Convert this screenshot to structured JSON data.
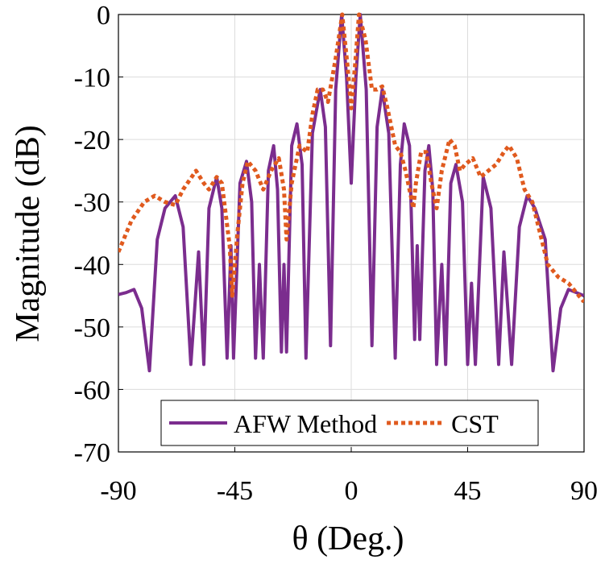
{
  "chart_data": {
    "type": "line",
    "xlabel": "θ (Deg.)",
    "ylabel": "Magnitude (dB)",
    "xlim": [
      -90,
      90
    ],
    "xticks": [
      -90,
      -45,
      0,
      45,
      90
    ],
    "ylim": [
      -70,
      0
    ],
    "yticks": [
      -70,
      -60,
      -50,
      -40,
      -30,
      -20,
      -10,
      0
    ],
    "grid": true,
    "legend": "lower center",
    "series": [
      {
        "name": "AFW Method",
        "color": "#7b2d8e",
        "dash": "solid",
        "x": [
          -90,
          -87,
          -84,
          -81,
          -78,
          -75,
          -72,
          -68,
          -65,
          -62,
          -59,
          -57,
          -55,
          -52,
          -50,
          -48,
          -46.5,
          -45.5,
          -43,
          -40.5,
          -38.5,
          -37,
          -35.5,
          -34,
          -32,
          -30,
          -28.5,
          -27,
          -26,
          -25,
          -23,
          -21,
          -19,
          -17.5,
          -15,
          -12,
          -10,
          -8,
          -6,
          -3.7,
          -1.8,
          0,
          1.8,
          3.5,
          5.8,
          8,
          10,
          12,
          14.5,
          17,
          19,
          20.5,
          22.5,
          24.5,
          25.5,
          26.5,
          28.5,
          30,
          31.5,
          33,
          35,
          36.5,
          38.5,
          40.5,
          43,
          45,
          46.5,
          48,
          51,
          54,
          57,
          59,
          62,
          65,
          68,
          71,
          75,
          78,
          81,
          84,
          87,
          90
        ],
        "values": [
          -44.8,
          -44.5,
          -44,
          -47,
          -57,
          -36,
          -31,
          -29,
          -34,
          -56,
          -38,
          -56,
          -31,
          -26,
          -31,
          -55,
          -37,
          -55,
          -27,
          -23.5,
          -30,
          -55,
          -40,
          -55,
          -25,
          -21,
          -28,
          -54,
          -40,
          -54,
          -21,
          -17.5,
          -24,
          -55,
          -19,
          -12,
          -18,
          -53,
          -12,
          0,
          -10,
          -27,
          -10,
          0,
          -12,
          -53,
          -18,
          -12,
          -19,
          -55,
          -24,
          -17.5,
          -21,
          -52,
          -37,
          -52,
          -25,
          -21,
          -28,
          -56,
          -40,
          -56,
          -27,
          -24,
          -30,
          -56,
          -43,
          -56,
          -26,
          -31,
          -56,
          -38,
          -56,
          -34,
          -29,
          -31,
          -36,
          -57,
          -47,
          -44,
          -44.5,
          -45
        ]
      },
      {
        "name": "CST",
        "color": "#e05a1e",
        "dash": "dotted",
        "x": [
          -90,
          -85,
          -80,
          -76,
          -72,
          -68,
          -65,
          -60,
          -57,
          -55,
          -52,
          -50,
          -47,
          -46,
          -44,
          -42,
          -40,
          -37,
          -34,
          -31,
          -28,
          -26,
          -25,
          -23,
          -20,
          -17,
          -15,
          -13,
          -11,
          -9,
          -6,
          -3.5,
          -1.5,
          0,
          1.5,
          3,
          5.5,
          8,
          10,
          12,
          14,
          17,
          19,
          21,
          24,
          25,
          27,
          29,
          31,
          33,
          35,
          38,
          40,
          42,
          44,
          47,
          50,
          53,
          56,
          59,
          61,
          64,
          67,
          70,
          73,
          76,
          80,
          84,
          88,
          90
        ],
        "values": [
          -38,
          -33,
          -30,
          -29,
          -30,
          -30.5,
          -28,
          -25,
          -27,
          -28,
          -26,
          -27,
          -37,
          -45,
          -35,
          -27,
          -23.5,
          -25,
          -28,
          -25,
          -23,
          -28,
          -36,
          -27,
          -21,
          -22,
          -16,
          -12,
          -12,
          -14,
          -7,
          0,
          -8,
          -15,
          -8,
          0,
          -4,
          -12,
          -12,
          -11.5,
          -15,
          -21,
          -22,
          -25,
          -31,
          -27,
          -22,
          -22,
          -27,
          -31,
          -25,
          -20,
          -21,
          -25,
          -24,
          -23,
          -26,
          -25,
          -24,
          -22,
          -21,
          -23,
          -28,
          -30,
          -35,
          -40,
          -42,
          -43,
          -45,
          -46
        ]
      }
    ]
  }
}
